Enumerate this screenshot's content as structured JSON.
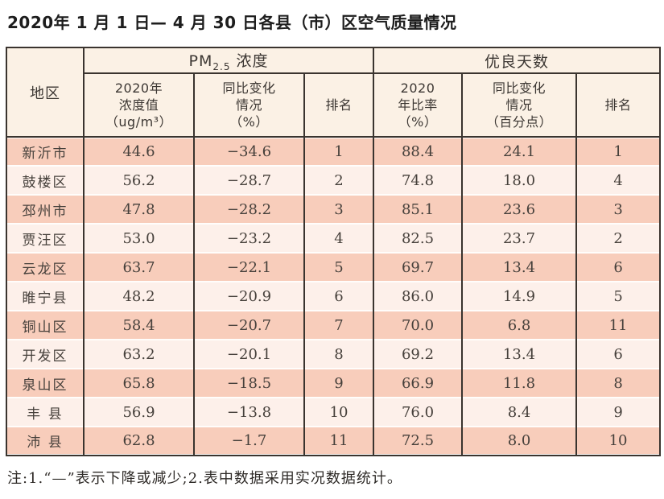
{
  "title": "2020年 1 月 1 日— 4 月 30 日各县（市）区空气质量情况",
  "note": "注:1.“—”表示下降或减少;2.表中数据采用实况数据统计。",
  "colors": {
    "band_dark": "#f8cdbb",
    "band_light": "#fdf0ea",
    "header_bg": "#fbf1e5",
    "border": "#3a342f"
  },
  "table": {
    "header": {
      "region": "地区",
      "pm25_prefix": "PM",
      "pm25_sub": "2.5",
      "pm25_suffix": " 浓度",
      "good_days_group": "优良天数",
      "sub_cols": [
        "2020年\n浓度值\n（ug/m³）",
        "同比变化\n情况\n（%）",
        "排名",
        "2020\n年比率\n（%）",
        "同比变化\n情况\n（百分点）",
        "排名"
      ]
    },
    "rows": [
      {
        "region": "新沂市",
        "pm25_value": "44.6",
        "pm25_change": "−34.6",
        "pm25_rank": "1",
        "good_rate": "88.4",
        "good_change": "24.1",
        "good_rank": "1"
      },
      {
        "region": "鼓楼区",
        "pm25_value": "56.2",
        "pm25_change": "−28.7",
        "pm25_rank": "2",
        "good_rate": "74.8",
        "good_change": "18.0",
        "good_rank": "4"
      },
      {
        "region": "邳州市",
        "pm25_value": "47.8",
        "pm25_change": "−28.2",
        "pm25_rank": "3",
        "good_rate": "85.1",
        "good_change": "23.6",
        "good_rank": "3"
      },
      {
        "region": "贾汪区",
        "pm25_value": "53.0",
        "pm25_change": "−23.2",
        "pm25_rank": "4",
        "good_rate": "82.5",
        "good_change": "23.7",
        "good_rank": "2"
      },
      {
        "region": "云龙区",
        "pm25_value": "63.7",
        "pm25_change": "−22.1",
        "pm25_rank": "5",
        "good_rate": "69.7",
        "good_change": "13.4",
        "good_rank": "6"
      },
      {
        "region": "睢宁县",
        "pm25_value": "48.2",
        "pm25_change": "−20.9",
        "pm25_rank": "6",
        "good_rate": "86.0",
        "good_change": "14.9",
        "good_rank": "5"
      },
      {
        "region": "铜山区",
        "pm25_value": "58.4",
        "pm25_change": "−20.7",
        "pm25_rank": "7",
        "good_rate": "70.0",
        "good_change": "6.8",
        "good_rank": "11"
      },
      {
        "region": "开发区",
        "pm25_value": "63.2",
        "pm25_change": "−20.1",
        "pm25_rank": "8",
        "good_rate": "69.2",
        "good_change": "13.4",
        "good_rank": "6"
      },
      {
        "region": "泉山区",
        "pm25_value": "65.8",
        "pm25_change": "−18.5",
        "pm25_rank": "9",
        "good_rate": "66.9",
        "good_change": "11.8",
        "good_rank": "8"
      },
      {
        "region": "丰 县",
        "pm25_value": "56.9",
        "pm25_change": "−13.8",
        "pm25_rank": "10",
        "good_rate": "76.0",
        "good_change": "8.4",
        "good_rank": "9"
      },
      {
        "region": "沛 县",
        "pm25_value": "62.8",
        "pm25_change": "−1.7",
        "pm25_rank": "11",
        "good_rate": "72.5",
        "good_change": "8.0",
        "good_rank": "10"
      }
    ]
  }
}
